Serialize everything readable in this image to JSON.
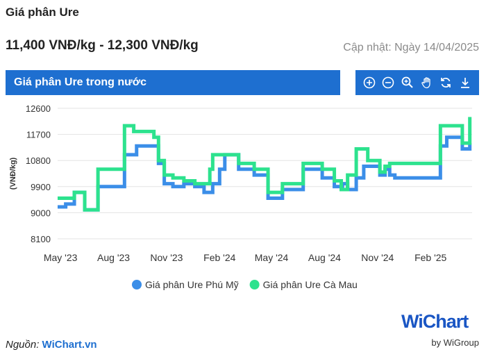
{
  "header": {
    "title": "Giá phân Ure",
    "price_range": "11,400 VNĐ/kg - 12,300 VNĐ/kg",
    "updated": "Cập nhật: Ngày 14/04/2025"
  },
  "chart_header": {
    "title": "Giá phân Ure trong nước"
  },
  "toolbar": {
    "icons": [
      "zoom-in-icon",
      "zoom-out-icon",
      "magnifier-icon",
      "pan-hand-icon",
      "reset-icon",
      "download-icon"
    ],
    "color": "#1e6fd0"
  },
  "chart_data": {
    "type": "line",
    "title": "",
    "xlabel": "",
    "ylabel": "(VNĐ/kg)",
    "ylim": [
      8100,
      12600
    ],
    "y_ticks": [
      8100,
      9000,
      9900,
      10800,
      11700,
      12600
    ],
    "x_ticks": [
      {
        "label": "May '23",
        "date": "2023-05-01"
      },
      {
        "label": "Aug '23",
        "date": "2023-08-01"
      },
      {
        "label": "Nov '23",
        "date": "2023-11-01"
      },
      {
        "label": "Feb '24",
        "date": "2024-02-01"
      },
      {
        "label": "May '24",
        "date": "2024-05-01"
      },
      {
        "label": "Aug '24",
        "date": "2024-08-01"
      },
      {
        "label": "Nov '24",
        "date": "2024-11-01"
      },
      {
        "label": "Feb '25",
        "date": "2025-02-01"
      }
    ],
    "x_range": [
      "2023-04-26",
      "2025-04-14"
    ],
    "grid": true,
    "legend": "bottom",
    "series": [
      {
        "name": "Giá phân Ure Phú Mỹ",
        "color": "#3b8ee8",
        "points": [
          [
            "2023-04-26",
            9200
          ],
          [
            "2023-05-10",
            9300
          ],
          [
            "2023-05-25",
            9700
          ],
          [
            "2023-06-12",
            9100
          ],
          [
            "2023-07-05",
            9900
          ],
          [
            "2023-08-20",
            11000
          ],
          [
            "2023-09-10",
            11300
          ],
          [
            "2023-10-10",
            11300
          ],
          [
            "2023-10-18",
            10700
          ],
          [
            "2023-10-28",
            10000
          ],
          [
            "2023-11-12",
            9900
          ],
          [
            "2023-12-01",
            10000
          ],
          [
            "2023-12-20",
            9900
          ],
          [
            "2024-01-05",
            9700
          ],
          [
            "2024-01-20",
            10000
          ],
          [
            "2024-02-01",
            10500
          ],
          [
            "2024-02-10",
            11000
          ],
          [
            "2024-03-05",
            10500
          ],
          [
            "2024-04-01",
            10300
          ],
          [
            "2024-04-25",
            9500
          ],
          [
            "2024-05-20",
            9800
          ],
          [
            "2024-06-25",
            10500
          ],
          [
            "2024-07-28",
            10200
          ],
          [
            "2024-08-18",
            9900
          ],
          [
            "2024-09-01",
            10000
          ],
          [
            "2024-09-10",
            9800
          ],
          [
            "2024-09-25",
            10200
          ],
          [
            "2024-10-08",
            10600
          ],
          [
            "2024-11-05",
            10300
          ],
          [
            "2024-11-14",
            10500
          ],
          [
            "2024-11-22",
            10300
          ],
          [
            "2024-12-01",
            10200
          ],
          [
            "2025-01-10",
            10200
          ],
          [
            "2025-02-10",
            10200
          ],
          [
            "2025-02-18",
            11300
          ],
          [
            "2025-03-01",
            11600
          ],
          [
            "2025-03-28",
            11200
          ],
          [
            "2025-04-10",
            11400
          ]
        ]
      },
      {
        "name": "Giá phân Ure Cà Mau",
        "color": "#2de28e",
        "points": [
          [
            "2023-04-26",
            9500
          ],
          [
            "2023-05-25",
            9700
          ],
          [
            "2023-06-12",
            9100
          ],
          [
            "2023-07-05",
            10500
          ],
          [
            "2023-08-01",
            10500
          ],
          [
            "2023-08-20",
            12000
          ],
          [
            "2023-09-05",
            11800
          ],
          [
            "2023-10-10",
            11600
          ],
          [
            "2023-10-18",
            10800
          ],
          [
            "2023-10-28",
            10300
          ],
          [
            "2023-11-12",
            10200
          ],
          [
            "2023-12-01",
            10100
          ],
          [
            "2023-12-20",
            10000
          ],
          [
            "2024-01-05",
            10000
          ],
          [
            "2024-01-15",
            10500
          ],
          [
            "2024-01-20",
            11000
          ],
          [
            "2024-03-05",
            10700
          ],
          [
            "2024-04-01",
            10500
          ],
          [
            "2024-04-25",
            9700
          ],
          [
            "2024-05-20",
            10000
          ],
          [
            "2024-06-25",
            10700
          ],
          [
            "2024-07-28",
            10500
          ],
          [
            "2024-08-18",
            10100
          ],
          [
            "2024-08-30",
            9800
          ],
          [
            "2024-09-10",
            10300
          ],
          [
            "2024-09-25",
            11200
          ],
          [
            "2024-10-15",
            10800
          ],
          [
            "2024-11-05",
            10400
          ],
          [
            "2024-11-14",
            10600
          ],
          [
            "2024-11-22",
            10700
          ],
          [
            "2025-01-15",
            10700
          ],
          [
            "2025-02-10",
            10700
          ],
          [
            "2025-02-18",
            12000
          ],
          [
            "2025-03-15",
            12000
          ],
          [
            "2025-03-28",
            11400
          ],
          [
            "2025-04-10",
            12300
          ]
        ]
      }
    ]
  },
  "source": {
    "prefix": "Nguồn:",
    "link": "WiChart.vn"
  },
  "logo": {
    "text": "WiChart",
    "by": "by WiGroup"
  }
}
